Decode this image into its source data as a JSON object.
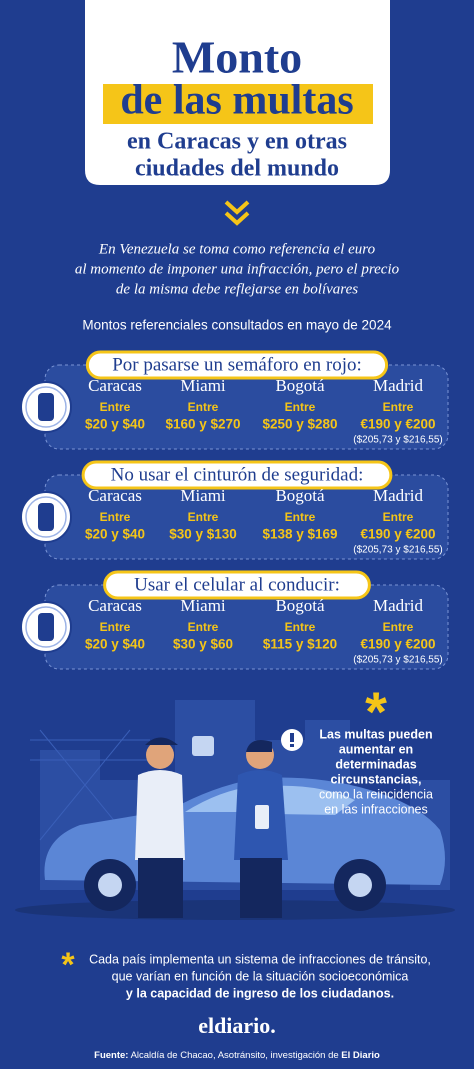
{
  "header": {
    "title_lines": [
      "Monto",
      "de las multas",
      "en Caracas y en otras",
      "ciudades del mundo"
    ]
  },
  "intro": {
    "lines": [
      "En Venezuela se toma como referencia el euro",
      "al momento de imponer una infracción, pero el precio",
      "de la misma debe reflejarse en bolívares"
    ]
  },
  "subtitle": "Montos referenciales consultados en mayo de 2024",
  "sections": [
    {
      "title": "Por pasarse un semáforo en rojo:",
      "cities": [
        {
          "name": "Caracas",
          "prefix": "Entre",
          "range": "$20 y $40"
        },
        {
          "name": "Miami",
          "prefix": "Entre",
          "range": "$160 y $270"
        },
        {
          "name": "Bogotá",
          "prefix": "Entre",
          "range": "$250 y $280"
        },
        {
          "name": "Madrid",
          "prefix": "Entre",
          "range": "€190 y €200",
          "note": "($205,73 y $216,55)"
        }
      ]
    },
    {
      "title": "No usar el cinturón de seguridad:",
      "cities": [
        {
          "name": "Caracas",
          "prefix": "Entre",
          "range": "$20 y $40"
        },
        {
          "name": "Miami",
          "prefix": "Entre",
          "range": "$30 y $130"
        },
        {
          "name": "Bogotá",
          "prefix": "Entre",
          "range": "$138 y $169"
        },
        {
          "name": "Madrid",
          "prefix": "Entre",
          "range": "€190 y €200",
          "note": "($205,73 y $216,55)"
        }
      ]
    },
    {
      "title": "Usar el celular al conducir:",
      "cities": [
        {
          "name": "Caracas",
          "prefix": "Entre",
          "range": "$20 y $40"
        },
        {
          "name": "Miami",
          "prefix": "Entre",
          "range": "$30 y $60"
        },
        {
          "name": "Bogotá",
          "prefix": "Entre",
          "range": "$115 y $120"
        },
        {
          "name": "Madrid",
          "prefix": "Entre",
          "range": "€190 y €200",
          "note": "($205,73 y $216,55)"
        }
      ]
    }
  ],
  "callout": {
    "bold_lines": [
      "Las multas pueden",
      "aumentar en",
      "determinadas",
      "circunstancias,"
    ],
    "lines": [
      "como la reincidencia",
      "en las infracciones"
    ]
  },
  "footnote": {
    "lines": [
      "Cada país implementa un sistema de infracciones de tránsito,",
      "que varían en función de la situación socioeconómica"
    ],
    "bold_line": "y la capacidad de ingreso de los ciudadanos."
  },
  "brand": "eldiario.",
  "source": {
    "label": "Fuente:",
    "text": "Alcaldía de Chacao, Asotránsito, investigación de",
    "bold": "El Diario"
  }
}
